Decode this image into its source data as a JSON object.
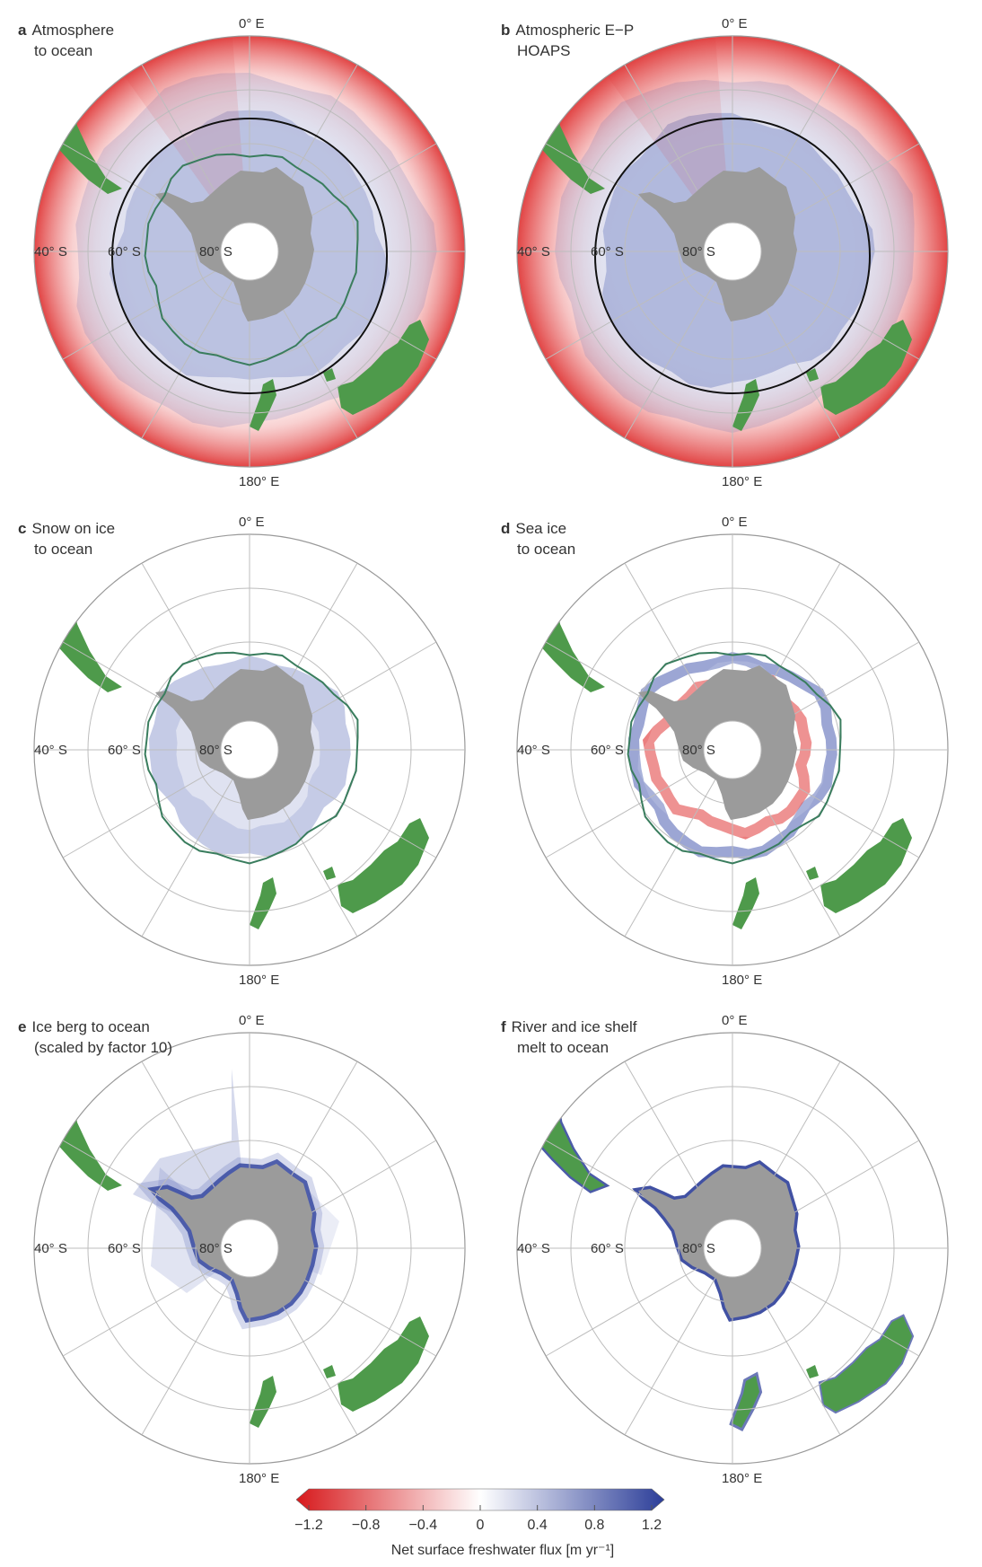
{
  "panels": [
    {
      "letter": "a",
      "title_line1": "Atmosphere",
      "title_line2": "to ocean",
      "field": "atm",
      "front": true,
      "ice_edge": true
    },
    {
      "letter": "b",
      "title_line1": "Atmospheric E−P",
      "title_line2": "HOAPS",
      "field": "hoaps",
      "front": true,
      "ice_edge": false
    },
    {
      "letter": "c",
      "title_line1": "Snow on ice",
      "title_line2": "to ocean",
      "field": "snow",
      "front": false,
      "ice_edge": true
    },
    {
      "letter": "d",
      "title_line1": "Sea ice",
      "title_line2": "to ocean",
      "field": "seaice",
      "front": false,
      "ice_edge": true
    },
    {
      "letter": "e",
      "title_line1": "Ice berg to ocean",
      "title_line2": "(scaled by factor 10)",
      "field": "iceberg",
      "front": false,
      "ice_edge": false
    },
    {
      "letter": "f",
      "title_line1": "River and ice shelf",
      "title_line2": "melt to ocean",
      "field": "river",
      "front": false,
      "ice_edge": false
    }
  ],
  "map_labels": {
    "top": "0° E",
    "bottom": "180° E",
    "lat40": "40° S",
    "lat60": "60° S",
    "lat80": "80° S"
  },
  "colorbar": {
    "title": "Net surface freshwater flux [m yr⁻¹]",
    "min": -1.2,
    "max": 1.2,
    "ticks": [
      "−1.2",
      "−0.8",
      "−0.4",
      "0",
      "0.4",
      "0.8",
      "1.2"
    ],
    "negative_color": "#d7191c",
    "positive_color": "#2c3e99",
    "zero_color": "#ffffff"
  },
  "colors": {
    "land": "#4e9a4b",
    "antarctica": "#9b9b9b",
    "grid": "#bdbdbd",
    "ice_edge": "#3a7d5e",
    "front": "#111111"
  }
}
